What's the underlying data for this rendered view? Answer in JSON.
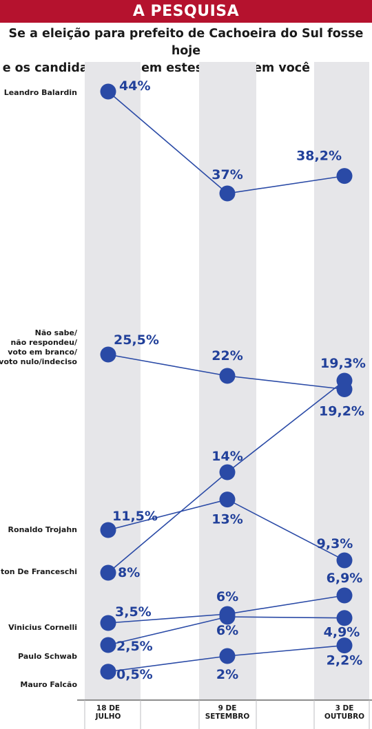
{
  "header": {
    "banner": "A PESQUISA",
    "question": "Se a eleição para prefeito de Cachoeira do Sul fosse hoje\ne os candidatos fossem estes, em quem você votaria?"
  },
  "colors": {
    "banner": "#b5122e",
    "column": "#e6e6e9",
    "marker": "#2a4aa6",
    "line": "#2a4aa6",
    "value_text": "#21409a",
    "text": "#1a1a1a"
  },
  "chart_data": {
    "type": "line",
    "title": "",
    "xlabel": "",
    "ylabel": "",
    "ylim": [
      0,
      44
    ],
    "grid": false,
    "legend": "none",
    "categories": [
      [
        "18 DE",
        "JULHO"
      ],
      [
        "9 DE",
        "SETEMBRO"
      ],
      [
        "3 DE",
        "OUTUBRO"
      ]
    ],
    "series": [
      {
        "name": "Leandro Balardin",
        "label_lines": [
          "Leandro Balardin"
        ],
        "values": [
          44,
          37,
          38.2
        ],
        "value_labels": [
          "44%",
          "37%",
          "38,2%"
        ]
      },
      {
        "name": "Não sabe/não respondeu/voto em branco/voto nulo/indeciso",
        "label_lines": [
          "Não sabe/",
          "não respondeu/",
          "voto em branco/",
          "voto nulo/indeciso"
        ],
        "values": [
          25.5,
          22,
          19.2
        ],
        "value_labels": [
          "25,5%",
          "22%",
          "19,2%"
        ]
      },
      {
        "name": "Ronaldo Trojahn",
        "label_lines": [
          "Ronaldo Trojahn"
        ],
        "values": [
          11.5,
          13,
          9.3
        ],
        "value_labels": [
          "11,5%",
          "13%",
          "9,3%"
        ]
      },
      {
        "name": "Hilton De Franceschi",
        "label_lines": [
          "Hilton De Franceschi"
        ],
        "values": [
          8,
          14,
          19.3
        ],
        "value_labels": [
          "8%",
          "14%",
          "19,3%"
        ]
      },
      {
        "name": "Vinicius Cornelli",
        "label_lines": [
          "Vinicius Cornelli"
        ],
        "values": [
          3.5,
          6,
          6.9
        ],
        "value_labels": [
          "3,5%",
          "6%",
          "6,9%"
        ]
      },
      {
        "name": "Paulo Schwab",
        "label_lines": [
          "Paulo Schwab"
        ],
        "values": [
          2.5,
          6,
          4.9
        ],
        "value_labels": [
          "2,5%",
          "6%",
          "4,9%"
        ]
      },
      {
        "name": "Mauro Falcão",
        "label_lines": [
          "Mauro Falcão"
        ],
        "values": [
          0.5,
          2,
          2.2
        ],
        "value_labels": [
          "0,5%",
          "2%",
          "2,2%"
        ]
      }
    ]
  }
}
